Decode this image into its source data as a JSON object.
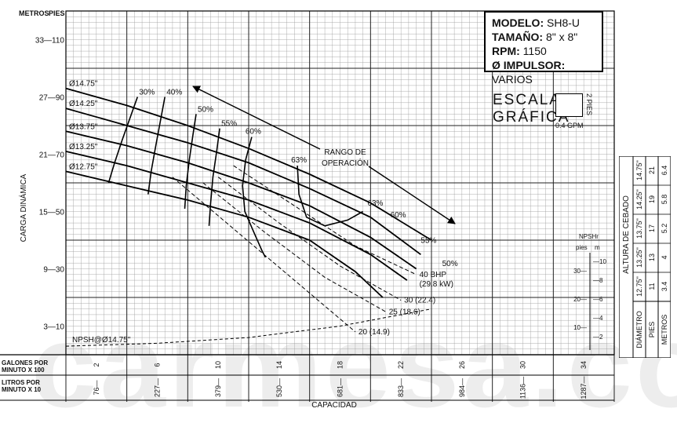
{
  "watermark": "carmesa.com",
  "axes": {
    "y_meters_title": "METROS",
    "y_feet_title": "PIES",
    "y_title": "CARGA DINÁMICA",
    "x_title": "CAPACIDAD",
    "gpm_label_1": "GALONES POR",
    "gpm_label_2": "MINUTO X 100",
    "lpm_label_1": "LITROS POR",
    "lpm_label_2": "MINUTO X 10",
    "y_ticks": [
      "33—110",
      "27—90",
      "21—70",
      "15—50",
      "9—30",
      "3—10"
    ],
    "gpm_ticks": [
      "2",
      "6",
      "10",
      "14",
      "18",
      "22",
      "26",
      "30",
      "34"
    ],
    "lpm_ticks": [
      "76",
      "227",
      "379",
      "530",
      "681",
      "833",
      "984",
      "1136",
      "1287"
    ]
  },
  "info": {
    "model_label": "MODELO:",
    "model_value": "SH8-U",
    "size_label": "TAMAÑO:",
    "size_value": "8\" x 8\"",
    "rpm_label": "RPM:",
    "rpm_value": "1150",
    "impeller_label": "Ø IMPULSOR:",
    "impeller_value": "VARIOS"
  },
  "scale": {
    "title_1": "ESCALA",
    "title_2": "GRÁFICA",
    "side": "2 PIES",
    "bottom": "0.4 GPM"
  },
  "npshr_axis": {
    "title": "NPSHr",
    "feet": "pies",
    "meters": "m",
    "feet_ticks": [
      "30",
      "20",
      "10"
    ],
    "meter_ticks": [
      "10",
      "8",
      "6",
      "4",
      "2"
    ]
  },
  "priming_table": {
    "title": "ALTURA DE CEBADO",
    "row_diameter_label": "DIÁMETRO",
    "row_feet_label": "PIES",
    "row_meters_label": "METROS",
    "diameters": [
      "12.75\"",
      "13.25\"",
      "13.75\"",
      "14.25\"",
      "14.75\""
    ],
    "feet": [
      "11",
      "13",
      "17",
      "19",
      "21"
    ],
    "meters": [
      "3.4",
      "4",
      "5.2",
      "5.8",
      "6.4"
    ]
  },
  "annotations": {
    "operating_range_1": "RANGO DE",
    "operating_range_2": "OPERACIÓN",
    "npsh_curve": "NPSH@Ø14.75\""
  },
  "chart_data": {
    "type": "line",
    "xlabel": "CAPACIDAD",
    "ylabel": "CARGA DINÁMICA",
    "x_unit": "GPM",
    "y_unit": "ft",
    "xlim": [
      0,
      3600
    ],
    "ylim": [
      0,
      120
    ],
    "grid": true,
    "head_curves": [
      {
        "name": "Ø14.75\"",
        "x": [
          0,
          400,
          800,
          1200,
          1600,
          2000,
          2400
        ],
        "y": [
          93,
          87,
          80,
          72,
          63,
          53,
          40
        ]
      },
      {
        "name": "Ø14.25\"",
        "x": [
          0,
          400,
          800,
          1200,
          1600,
          2000,
          2330
        ],
        "y": [
          86,
          80,
          74,
          67,
          58,
          48,
          35
        ]
      },
      {
        "name": "Ø13.75\"",
        "x": [
          0,
          400,
          800,
          1200,
          1600,
          2000,
          2300
        ],
        "y": [
          78,
          73,
          67,
          60,
          52,
          41,
          30
        ]
      },
      {
        "name": "Ø13.25\"",
        "x": [
          0,
          400,
          800,
          1200,
          1600,
          2000,
          2240
        ],
        "y": [
          71,
          66,
          60,
          54,
          46,
          35,
          26
        ]
      },
      {
        "name": "Ø12.75\"",
        "x": [
          0,
          400,
          800,
          1200,
          1600,
          1900,
          2080
        ],
        "y": [
          64,
          59,
          54,
          48,
          40,
          29,
          20
        ]
      }
    ],
    "efficiency_curves": [
      {
        "name": "30%",
        "x": [
          280,
          320,
          370,
          430,
          470
        ],
        "y": [
          60,
          67,
          75,
          84,
          90
        ]
      },
      {
        "name": "40%",
        "x": [
          540,
          560,
          590,
          625,
          650
        ],
        "y": [
          56,
          64,
          73,
          83,
          90
        ]
      },
      {
        "name": "50%",
        "x": [
          780,
          790,
          810,
          835,
          855
        ],
        "y": [
          51,
          59,
          68,
          77,
          84
        ]
      },
      {
        "name": "55%",
        "x": [
          940,
          950,
          965,
          990,
          1010
        ],
        "y": [
          45,
          53,
          62,
          71,
          79
        ]
      },
      {
        "name": "60%",
        "x": [
          1220,
          1180,
          1160,
          1175,
          1240,
          1290,
          1310
        ],
        "y": [
          76,
          68,
          59,
          50,
          42,
          36,
          34
        ]
      },
      {
        "name": "63%",
        "x": [
          1520,
          1530,
          1580,
          1700,
          1850,
          1950
        ],
        "y": [
          66,
          56,
          48,
          45,
          47,
          50
        ]
      }
    ],
    "efficiency_labels": [
      {
        "text": "63%",
        "x": 1980,
        "y": 52
      },
      {
        "text": "60%",
        "x": 2130,
        "y": 48
      },
      {
        "text": "55%",
        "x": 2330,
        "y": 39
      },
      {
        "text": "50%",
        "x": 2470,
        "y": 31
      }
    ],
    "bhp_curves": [
      {
        "name": "40 BHP",
        "kw": "(29.8 kW)",
        "x": [
          1100,
          1500,
          1900,
          2300
        ],
        "y": [
          66,
          52,
          38,
          28
        ]
      },
      {
        "name": "30 (22.4)",
        "x": [
          1000,
          1400,
          1800,
          2200
        ],
        "y": [
          62,
          46,
          31,
          19
        ]
      },
      {
        "name": "25 (18.6)",
        "x": [
          900,
          1300,
          1700,
          2100
        ],
        "y": [
          60,
          43,
          27,
          15
        ]
      },
      {
        "name": "20 (14.9)",
        "x": [
          700,
          1100,
          1500,
          1900
        ],
        "y": [
          62,
          44,
          26,
          8
        ]
      }
    ],
    "npsh_curve": {
      "name": "NPSH@Ø14.75\"",
      "x": [
        0,
        600,
        1200,
        1800,
        2400
      ],
      "y": [
        3,
        4,
        6,
        10,
        16
      ]
    }
  }
}
